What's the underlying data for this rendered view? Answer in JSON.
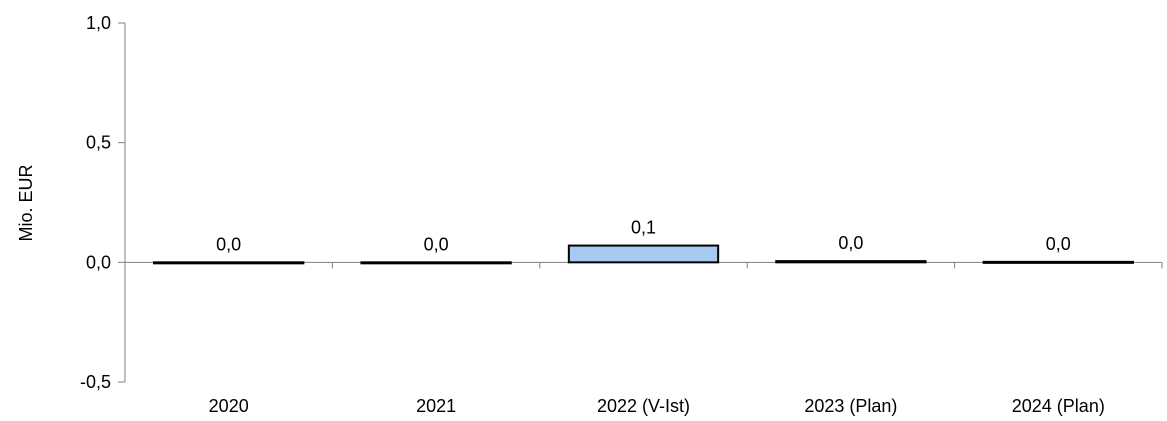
{
  "chart_data": {
    "type": "bar",
    "categories": [
      "2020",
      "2021",
      "2022 (V-Ist)",
      "2023 (Plan)",
      "2024 (Plan)"
    ],
    "values": [
      0.0,
      0.0,
      0.07,
      0.005,
      0.002
    ],
    "data_labels": [
      "0,0",
      "0,0",
      "0,1",
      "0,0",
      "0,0"
    ],
    "title": "",
    "xlabel": "",
    "ylabel": "Mio. EUR",
    "ylim": [
      -0.5,
      1.0
    ],
    "yticks": [
      1.0,
      0.5,
      0.0,
      -0.5
    ],
    "ytick_labels": [
      "1,0",
      "0,5",
      "0,0",
      "-0,5"
    ],
    "grid": false,
    "legend": "none",
    "colors": {
      "bar_fill": "#A6CAF0",
      "bar_stroke": "#000000",
      "axis": "#808080",
      "text": "#000000"
    }
  }
}
